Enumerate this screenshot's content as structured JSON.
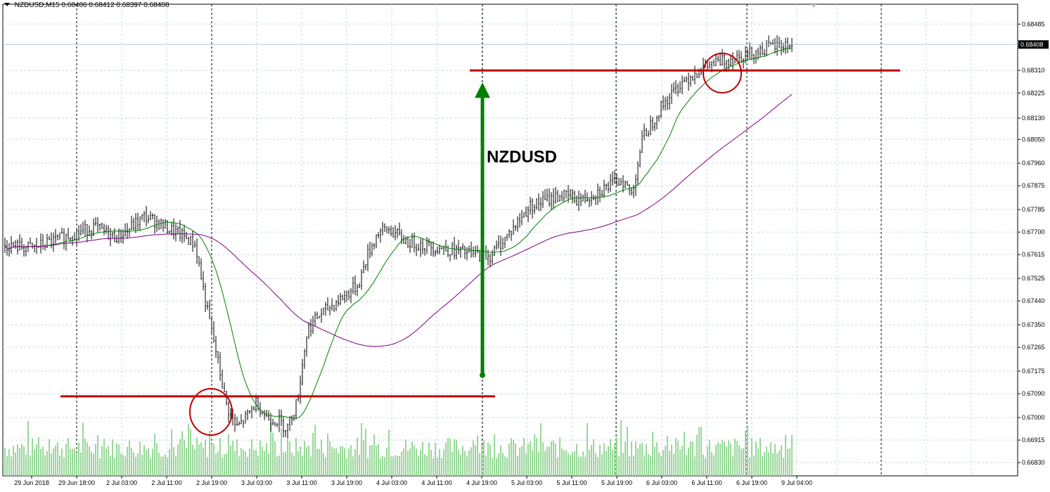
{
  "header": {
    "symbol": "NZDUSD,M15",
    "ohlc": "0.68406 0.68412 0.68397 0.68408"
  },
  "annotation": {
    "label": "NZDUSD"
  },
  "chart_data": {
    "type": "candlestick",
    "instrument": "NZDUSD",
    "timeframe": "M15",
    "ylim": [
      0.6678,
      0.6856
    ],
    "price_ticks": [
      "0.68485",
      "0.68310",
      "0.68225",
      "0.68130",
      "0.68050",
      "0.67960",
      "0.67875",
      "0.67785",
      "0.67700",
      "0.67615",
      "0.67525",
      "0.67440",
      "0.67350",
      "0.67265",
      "0.67175",
      "0.67090",
      "0.67000",
      "0.66915",
      "0.66830"
    ],
    "current_price": "0.68408",
    "time_labels": [
      "29 Jun 2018",
      "29 Jun 18:00",
      "2 Jul 03:00",
      "2 Jul 11:00",
      "2 Jul 19:00",
      "3 Jul 03:00",
      "3 Jul 11:00",
      "3 Jul 19:00",
      "4 Jul 03:00",
      "4 Jul 11:00",
      "4 Jul 19:00",
      "5 Jul 03:00",
      "5 Jul 11:00",
      "5 Jul 19:00",
      "6 Jul 03:00",
      "6 Jul 11:00",
      "6 Jul 19:00",
      "9 Jul 04:00"
    ],
    "close_path": [
      [
        0,
        0.6765
      ],
      [
        0.03,
        0.6764
      ],
      [
        0.06,
        0.6768
      ],
      [
        0.09,
        0.6772
      ],
      [
        0.11,
        0.6768
      ],
      [
        0.12,
        0.677
      ],
      [
        0.14,
        0.6776
      ],
      [
        0.16,
        0.6772
      ],
      [
        0.18,
        0.6768
      ],
      [
        0.19,
        0.6765
      ],
      [
        0.2,
        0.6743
      ],
      [
        0.21,
        0.6725
      ],
      [
        0.22,
        0.6705
      ],
      [
        0.23,
        0.6696
      ],
      [
        0.24,
        0.67
      ],
      [
        0.25,
        0.6706
      ],
      [
        0.26,
        0.67
      ],
      [
        0.27,
        0.6699
      ],
      [
        0.28,
        0.6696
      ],
      [
        0.29,
        0.6706
      ],
      [
        0.3,
        0.6733
      ],
      [
        0.31,
        0.6738
      ],
      [
        0.33,
        0.6744
      ],
      [
        0.35,
        0.675
      ],
      [
        0.36,
        0.6762
      ],
      [
        0.37,
        0.677
      ],
      [
        0.38,
        0.6771
      ],
      [
        0.4,
        0.6766
      ],
      [
        0.43,
        0.6764
      ],
      [
        0.46,
        0.6762
      ],
      [
        0.48,
        0.6761
      ],
      [
        0.5,
        0.677
      ],
      [
        0.52,
        0.678
      ],
      [
        0.55,
        0.6784
      ],
      [
        0.57,
        0.6782
      ],
      [
        0.59,
        0.6786
      ],
      [
        0.61,
        0.679
      ],
      [
        0.62,
        0.6784
      ],
      [
        0.63,
        0.6805
      ],
      [
        0.65,
        0.6818
      ],
      [
        0.67,
        0.6827
      ],
      [
        0.69,
        0.6832
      ],
      [
        0.72,
        0.6836
      ],
      [
        0.74,
        0.6838
      ],
      [
        0.76,
        0.684
      ],
      [
        0.78,
        0.6841
      ]
    ],
    "series": [
      {
        "type": "candlestick",
        "color": "#000000"
      },
      {
        "type": "moving_average",
        "color": "#008000"
      },
      {
        "type": "moving_average",
        "color": "#800080"
      },
      {
        "type": "volume_histogram",
        "color": "#90d890"
      }
    ],
    "levels": [
      {
        "price": 0.6831,
        "color": "#c00000"
      },
      {
        "price": 0.6708,
        "color": "#c00000"
      }
    ],
    "arrow": {
      "color": "#008000",
      "from_price": 0.6716,
      "to_price": 0.68265,
      "direction": "up"
    },
    "grid": true,
    "background": "#ffffff"
  }
}
